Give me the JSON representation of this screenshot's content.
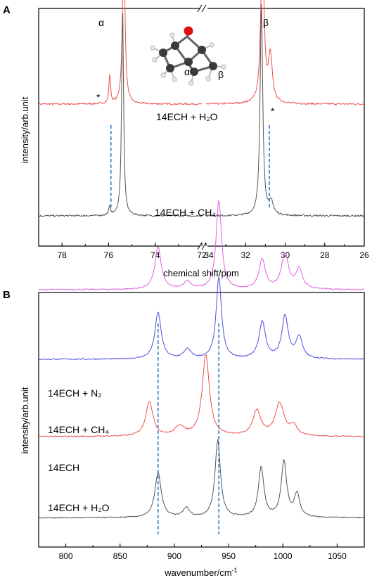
{
  "chart_data": [
    {
      "panel": "A",
      "type": "line",
      "title": "",
      "xlabel": "chemical shift/ppm",
      "ylabel": "intensity/arb.unit",
      "axis_break": true,
      "x_left_range": [
        79,
        72
      ],
      "x_right_range": [
        34,
        26
      ],
      "x_ticks_left": [
        78,
        76,
        74,
        72
      ],
      "x_ticks_right": [
        34,
        32,
        30,
        28,
        26
      ],
      "peak_labels": {
        "alpha": "α",
        "beta": "β",
        "star": "*"
      },
      "molecule_labels": {
        "alpha": "α",
        "beta": "β"
      },
      "markers": [
        75.9,
        30.8
      ],
      "series": [
        {
          "name": "14ECH + H₂O",
          "color": "#ee5050",
          "baseline": 0.58,
          "peaks": [
            [
              75.95,
              0.14,
              0.04
            ],
            [
              75.35,
              0.82,
              0.06
            ],
            [
              31.15,
              0.84,
              0.09
            ],
            [
              30.75,
              0.22,
              0.12
            ]
          ]
        },
        {
          "name": "14ECH + CH₄",
          "color": "#555555",
          "baseline": 0.05,
          "peaks": [
            [
              75.95,
              0.04,
              0.05
            ],
            [
              75.4,
              0.98,
              0.05
            ],
            [
              31.2,
              1.0,
              0.08
            ],
            [
              30.7,
              0.06,
              0.12
            ]
          ]
        }
      ]
    },
    {
      "panel": "B",
      "type": "line",
      "title": "",
      "xlabel": "wavenumber/cm",
      "xlabel_sup": "-1",
      "ylabel": "intensity/arb.unit",
      "xlim": [
        775,
        1075
      ],
      "x_ticks": [
        800,
        850,
        900,
        950,
        1000,
        1050
      ],
      "markers": [
        885,
        941
      ],
      "series": [
        {
          "name": "14ECH + N₂",
          "color": "#e060e0",
          "baseline": 3.0,
          "peaks": [
            [
              885,
              0.55,
              3.5
            ],
            [
              912,
              0.1,
              4
            ],
            [
              941,
              1.15,
              3
            ],
            [
              981,
              0.38,
              3.5
            ],
            [
              1002,
              0.45,
              4
            ],
            [
              1015,
              0.25,
              3.5
            ]
          ]
        },
        {
          "name": "14ECH + CH₄",
          "color": "#5050e0",
          "baseline": 2.1,
          "peaks": [
            [
              885,
              0.6,
              3.5
            ],
            [
              912,
              0.12,
              4
            ],
            [
              941,
              1.05,
              3
            ],
            [
              981,
              0.48,
              3.5
            ],
            [
              1002,
              0.55,
              3.5
            ],
            [
              1015,
              0.28,
              3.5
            ]
          ]
        },
        {
          "name": "14ECH",
          "color": "#ee5050",
          "baseline": 1.1,
          "peaks": [
            [
              877,
              0.45,
              4
            ],
            [
              905,
              0.12,
              5
            ],
            [
              929,
              1.05,
              4
            ],
            [
              976,
              0.32,
              4.5
            ],
            [
              997,
              0.42,
              5
            ],
            [
              1010,
              0.12,
              4
            ]
          ]
        },
        {
          "name": "14ECH + H₂O",
          "color": "#555555",
          "baseline": 0.05,
          "peaks": [
            [
              885,
              0.58,
              3.5
            ],
            [
              911,
              0.12,
              3.5
            ],
            [
              940,
              1.0,
              3
            ],
            [
              980,
              0.65,
              3
            ],
            [
              1001,
              0.72,
              3
            ],
            [
              1013,
              0.3,
              3
            ]
          ]
        }
      ]
    }
  ]
}
